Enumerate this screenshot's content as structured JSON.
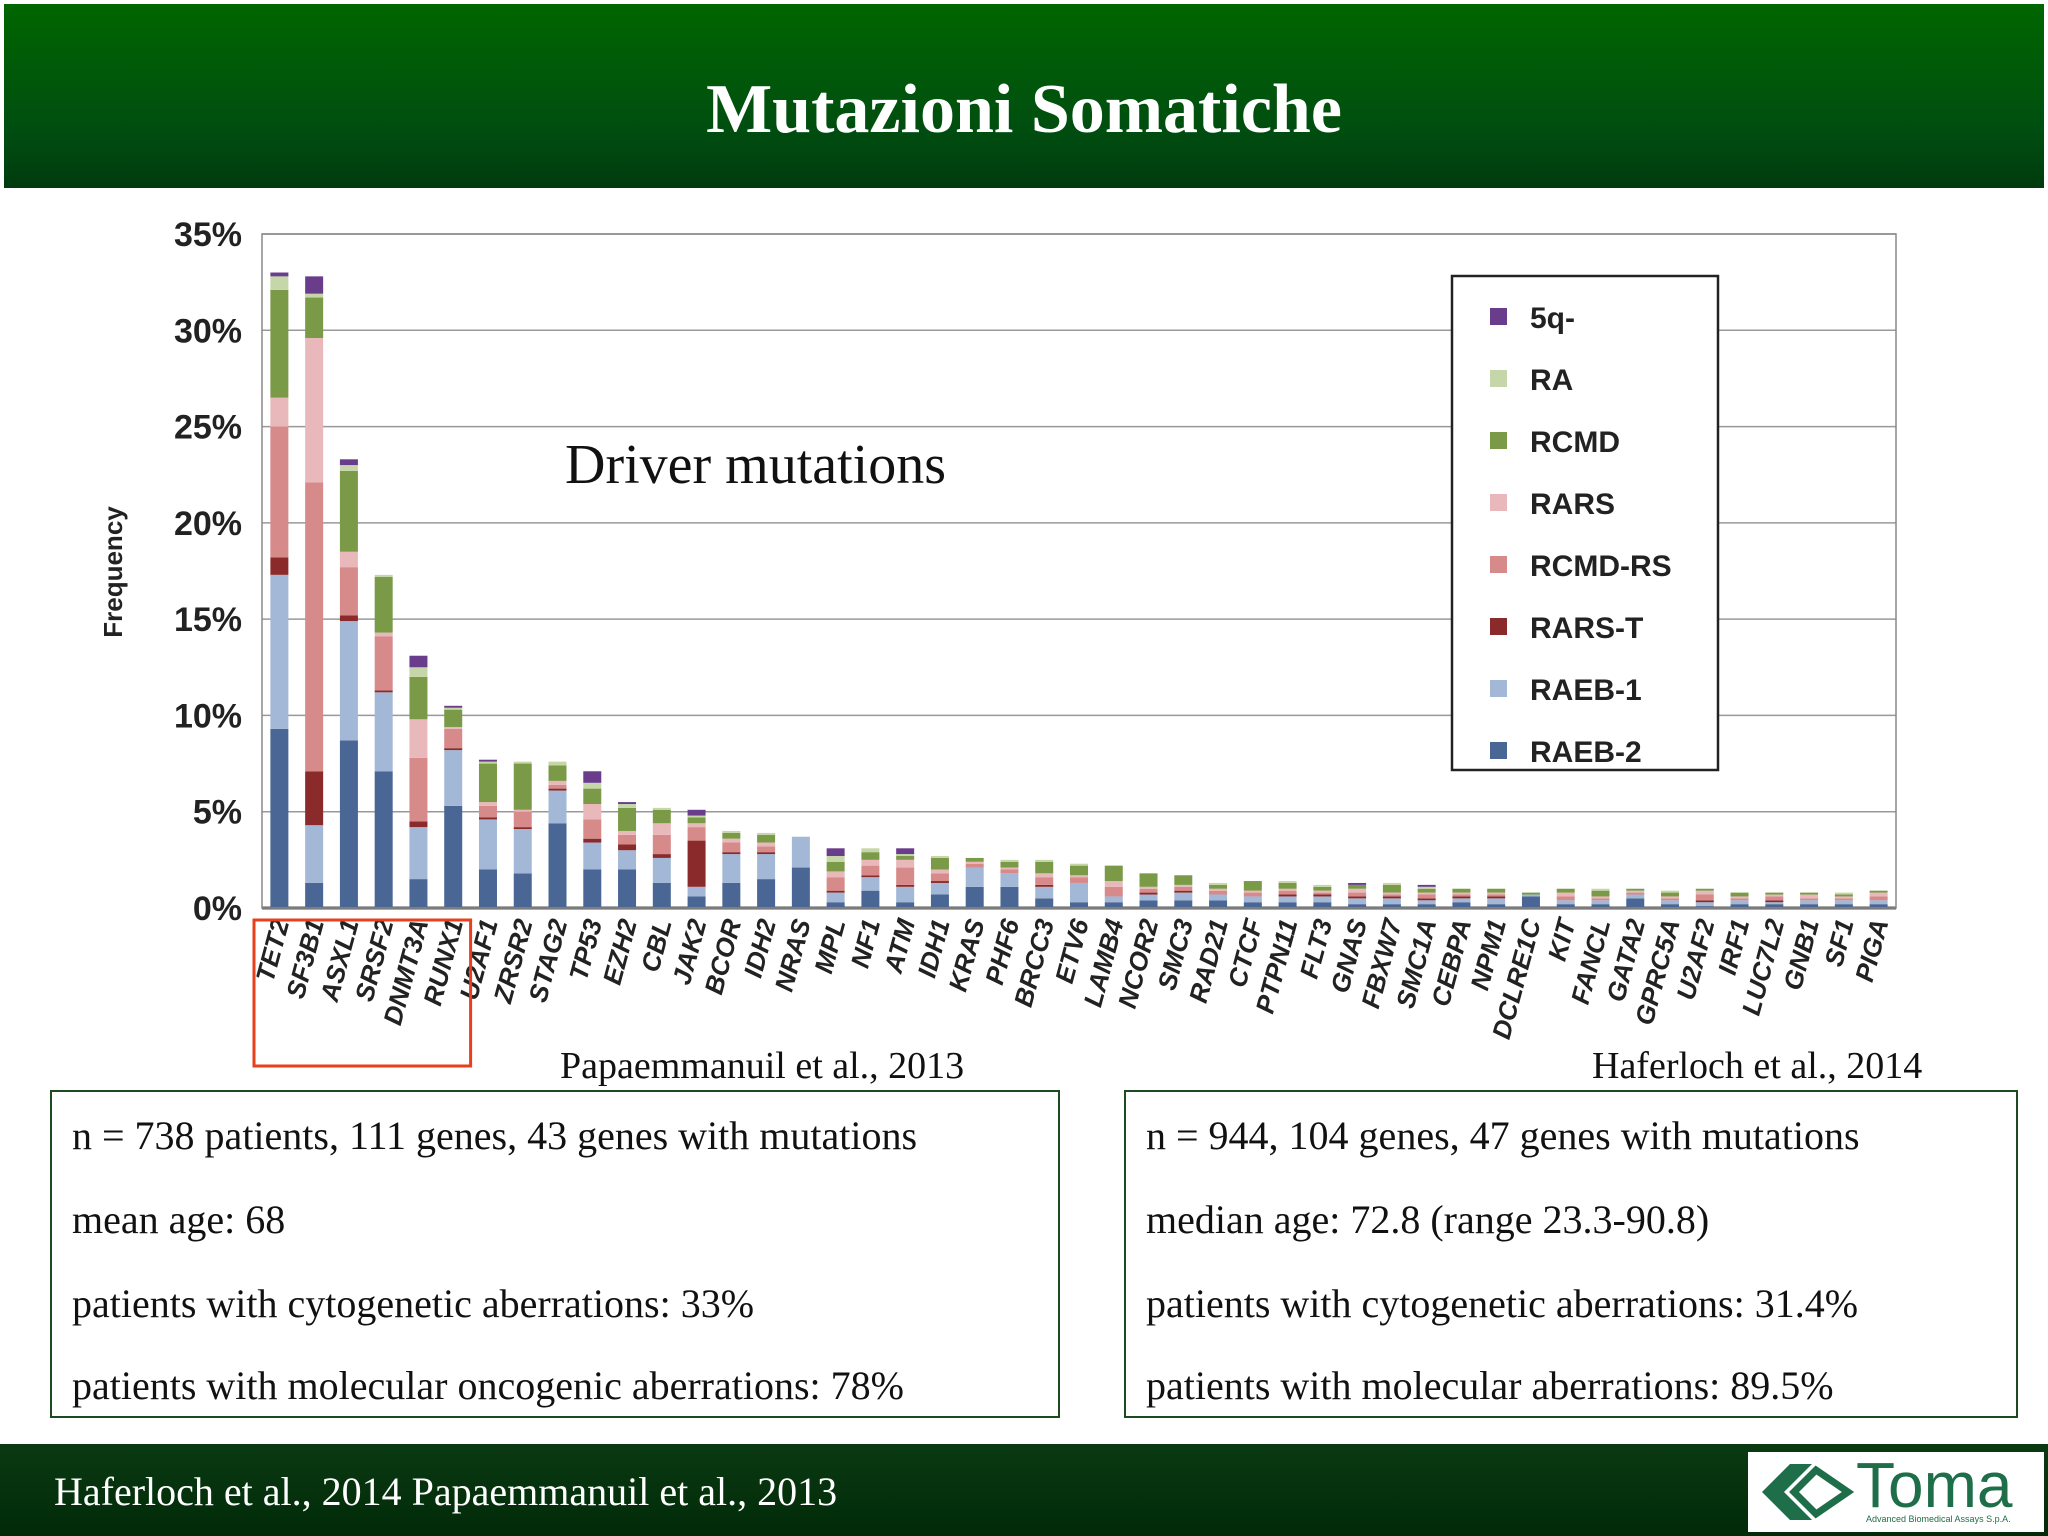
{
  "slide": {
    "title": "Mutazioni Somatiche",
    "ref_left": "Papaemmanuil et al., 2013",
    "ref_right": "Haferloch et al., 2014",
    "box_left": [
      "n = 738 patients, 111 genes, 43 genes with mutations",
      "mean age: 68",
      "patients with cytogenetic aberrations: 33%",
      "patients with molecular oncogenic aberrations: 78%"
    ],
    "box_right": [
      "n = 944, 104 genes, 47 genes with mutations",
      "median age: 72.8 (range 23.3-90.8)",
      "patients with cytogenetic aberrations: 31.4%",
      "patients with molecular aberrations: 89.5%"
    ],
    "footer": "Haferloch et al., 2014  Papaemmanuil et al., 2013",
    "logo": {
      "name": "Toma",
      "tagline": "Advanced Biomedical Assays S.p.A."
    },
    "colors": {
      "header": "#006600",
      "highlight_box": "#e8401c",
      "box_border": "#1d4a1f"
    }
  },
  "chart_data": {
    "type": "bar",
    "stacked": true,
    "ylabel": "Frequency",
    "annotation": "Driver mutations",
    "ylim": [
      0,
      35
    ],
    "yticks": [
      "0%",
      "5%",
      "10%",
      "15%",
      "20%",
      "25%",
      "30%",
      "35%"
    ],
    "grid": true,
    "legend_position": "top-right",
    "highlighted_categories": [
      "TET2",
      "SF3B1",
      "ASXL1",
      "SRSF2",
      "DNMT3A",
      "RUNX1"
    ],
    "categories": [
      "TET2",
      "SF3B1",
      "ASXL1",
      "SRSF2",
      "DNMT3A",
      "RUNX1",
      "U2AF1",
      "ZRSR2",
      "STAG2",
      "TP53",
      "EZH2",
      "CBL",
      "JAK2",
      "BCOR",
      "IDH2",
      "NRAS",
      "MPL",
      "NF1",
      "ATM",
      "IDH1",
      "KRAS",
      "PHF6",
      "BRCC3",
      "ETV6",
      "LAMB4",
      "NCOR2",
      "SMC3",
      "RAD21",
      "CTCF",
      "PTPN11",
      "FLT3",
      "GNAS",
      "FBXW7",
      "SMC1A",
      "CEBPA",
      "NPM1",
      "DCLRE1C",
      "KIT",
      "FANCL",
      "GATA2",
      "GPRC5A",
      "U2AF2",
      "IRF1",
      "LUC7L2",
      "GNB1",
      "SF1",
      "PIGA"
    ],
    "series": [
      {
        "name": "RAEB-2",
        "color": "#4a6694",
        "values": [
          9.3,
          1.3,
          8.7,
          7.1,
          1.5,
          5.3,
          2.0,
          1.8,
          4.4,
          2.0,
          2.0,
          1.3,
          0.6,
          1.3,
          1.5,
          2.1,
          0.3,
          0.9,
          0.3,
          0.7,
          1.1,
          1.1,
          0.5,
          0.3,
          0.3,
          0.4,
          0.4,
          0.4,
          0.3,
          0.3,
          0.3,
          0.2,
          0.2,
          0.2,
          0.3,
          0.2,
          0.6,
          0.2,
          0.2,
          0.5,
          0.2,
          0.1,
          0.2,
          0.2,
          0.2,
          0.2,
          0.2
        ]
      },
      {
        "name": "RAEB-1",
        "color": "#a3b8d6",
        "values": [
          8.0,
          3.0,
          6.2,
          4.1,
          2.7,
          2.9,
          2.6,
          2.3,
          1.7,
          1.4,
          1.0,
          1.3,
          0.5,
          1.5,
          1.3,
          1.6,
          0.5,
          0.7,
          0.8,
          0.6,
          1.0,
          0.7,
          0.6,
          1.0,
          0.3,
          0.3,
          0.4,
          0.3,
          0.3,
          0.3,
          0.3,
          0.3,
          0.3,
          0.2,
          0.2,
          0.3,
          0.1,
          0.2,
          0.2,
          0.2,
          0.2,
          0.2,
          0.2,
          0.1,
          0.2,
          0.2,
          0.2
        ]
      },
      {
        "name": "RARS-T",
        "color": "#8b2a2a",
        "values": [
          0.9,
          2.8,
          0.3,
          0.1,
          0.3,
          0.1,
          0.1,
          0.1,
          0.1,
          0.2,
          0.3,
          0.2,
          2.4,
          0.1,
          0.1,
          0,
          0.1,
          0.1,
          0.1,
          0.1,
          0,
          0,
          0.1,
          0,
          0,
          0.1,
          0.1,
          0,
          0,
          0.1,
          0.1,
          0.1,
          0.1,
          0.1,
          0.1,
          0.1,
          0,
          0,
          0,
          0,
          0,
          0.1,
          0,
          0.1,
          0,
          0,
          0
        ]
      },
      {
        "name": "RCMD-RS",
        "color": "#d68a8a",
        "values": [
          6.8,
          15.0,
          2.5,
          2.8,
          3.3,
          1.0,
          0.6,
          0.8,
          0.2,
          1.0,
          0.5,
          1.0,
          0.7,
          0.5,
          0.3,
          0,
          0.7,
          0.5,
          0.9,
          0.4,
          0.2,
          0.2,
          0.4,
          0.3,
          0.5,
          0.2,
          0.2,
          0.2,
          0.2,
          0.2,
          0.1,
          0.2,
          0.1,
          0.2,
          0.1,
          0.1,
          0,
          0.2,
          0.1,
          0.1,
          0.1,
          0.3,
          0.1,
          0.2,
          0.1,
          0.1,
          0.2
        ]
      },
      {
        "name": "RARS",
        "color": "#e9b8bb",
        "values": [
          1.5,
          7.5,
          0.8,
          0.2,
          2.0,
          0.1,
          0.2,
          0.1,
          0.2,
          0.8,
          0.2,
          0.6,
          0.2,
          0.2,
          0.2,
          0,
          0.3,
          0.3,
          0.4,
          0.2,
          0.1,
          0.1,
          0.2,
          0.1,
          0.3,
          0.1,
          0.1,
          0.1,
          0.1,
          0.1,
          0.1,
          0.2,
          0.1,
          0.1,
          0.1,
          0.1,
          0,
          0.2,
          0.1,
          0.1,
          0.1,
          0.2,
          0.1,
          0.1,
          0.2,
          0.1,
          0.2
        ]
      },
      {
        "name": "RCMD",
        "color": "#7a9a48",
        "values": [
          5.6,
          2.1,
          4.2,
          2.9,
          2.2,
          0.9,
          2.0,
          2.4,
          0.8,
          0.8,
          1.2,
          0.7,
          0.3,
          0.3,
          0.4,
          0,
          0.5,
          0.4,
          0.2,
          0.6,
          0.2,
          0.3,
          0.6,
          0.5,
          0.8,
          0.7,
          0.5,
          0.2,
          0.5,
          0.3,
          0.2,
          0.2,
          0.4,
          0.2,
          0.2,
          0.2,
          0.1,
          0.2,
          0.3,
          0.1,
          0.2,
          0.1,
          0.2,
          0.1,
          0.1,
          0.1,
          0.1
        ]
      },
      {
        "name": "RA",
        "color": "#c5d6a8",
        "values": [
          0.7,
          0.2,
          0.3,
          0.1,
          0.5,
          0.1,
          0.1,
          0.1,
          0.2,
          0.3,
          0.2,
          0.1,
          0.1,
          0.1,
          0.1,
          0,
          0.3,
          0.2,
          0.1,
          0.1,
          0,
          0.1,
          0.1,
          0.1,
          0,
          0,
          0,
          0.1,
          0,
          0.1,
          0.1,
          0,
          0.1,
          0.1,
          0,
          0,
          0,
          0,
          0.1,
          0,
          0.1,
          0,
          0,
          0,
          0,
          0.1,
          0
        ]
      },
      {
        "name": "5q-",
        "color": "#6a3d8c",
        "values": [
          0.2,
          0.9,
          0.3,
          0,
          0.6,
          0.1,
          0.1,
          0,
          0,
          0.6,
          0.1,
          0,
          0.3,
          0,
          0,
          0,
          0.4,
          0,
          0.3,
          0,
          0,
          0,
          0,
          0,
          0,
          0,
          0,
          0,
          0,
          0,
          0,
          0.1,
          0,
          0.1,
          0,
          0,
          0,
          0,
          0,
          0,
          0,
          0,
          0,
          0,
          0,
          0,
          0
        ]
      }
    ]
  }
}
